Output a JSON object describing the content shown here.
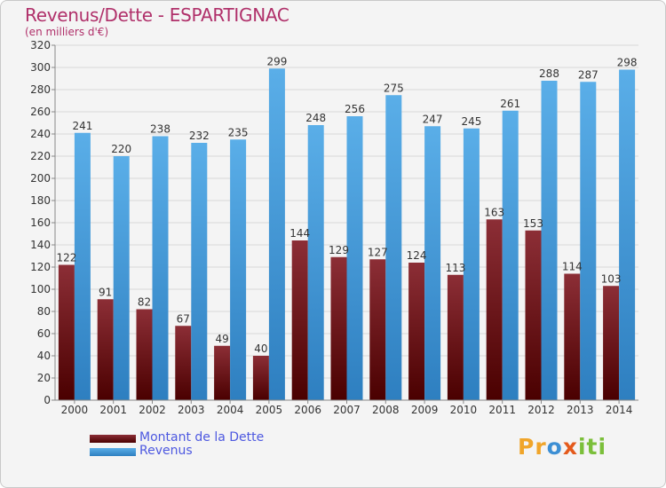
{
  "title": "Revenus/Dette - ESPARTIGNAC",
  "subtitle": "(en milliers d'€)",
  "colors": {
    "debt_top": "#8c2e36",
    "debt_bottom": "#4a0000",
    "revenue_top": "#5aaee8",
    "revenue_bottom": "#2e7fc0",
    "title": "#b0306a",
    "legend_text": "#4d58e0"
  },
  "legend": {
    "debt_label": "Montant de la Dette",
    "revenue_label": "Revenus"
  },
  "logo": {
    "parts": [
      "Pr",
      "o",
      "x",
      "iti"
    ]
  },
  "chart_data": {
    "type": "bar",
    "title": "Revenus/Dette - ESPARTIGNAC",
    "ylabel": "(en milliers d'€)",
    "xlabel": "",
    "categories": [
      "2000",
      "2001",
      "2002",
      "2003",
      "2004",
      "2005",
      "2006",
      "2007",
      "2008",
      "2009",
      "2010",
      "2011",
      "2012",
      "2013",
      "2014"
    ],
    "series": [
      {
        "name": "Montant de la Dette",
        "values": [
          122,
          91,
          82,
          67,
          49,
          40,
          144,
          129,
          127,
          124,
          113,
          163,
          153,
          114,
          103
        ]
      },
      {
        "name": "Revenus",
        "values": [
          241,
          220,
          238,
          232,
          235,
          299,
          248,
          256,
          275,
          247,
          245,
          261,
          288,
          287,
          298
        ]
      }
    ],
    "ylim": [
      0,
      320
    ],
    "yticks": [
      0,
      20,
      40,
      60,
      80,
      100,
      120,
      140,
      160,
      180,
      200,
      220,
      240,
      260,
      280,
      300,
      320
    ],
    "grid": true
  }
}
